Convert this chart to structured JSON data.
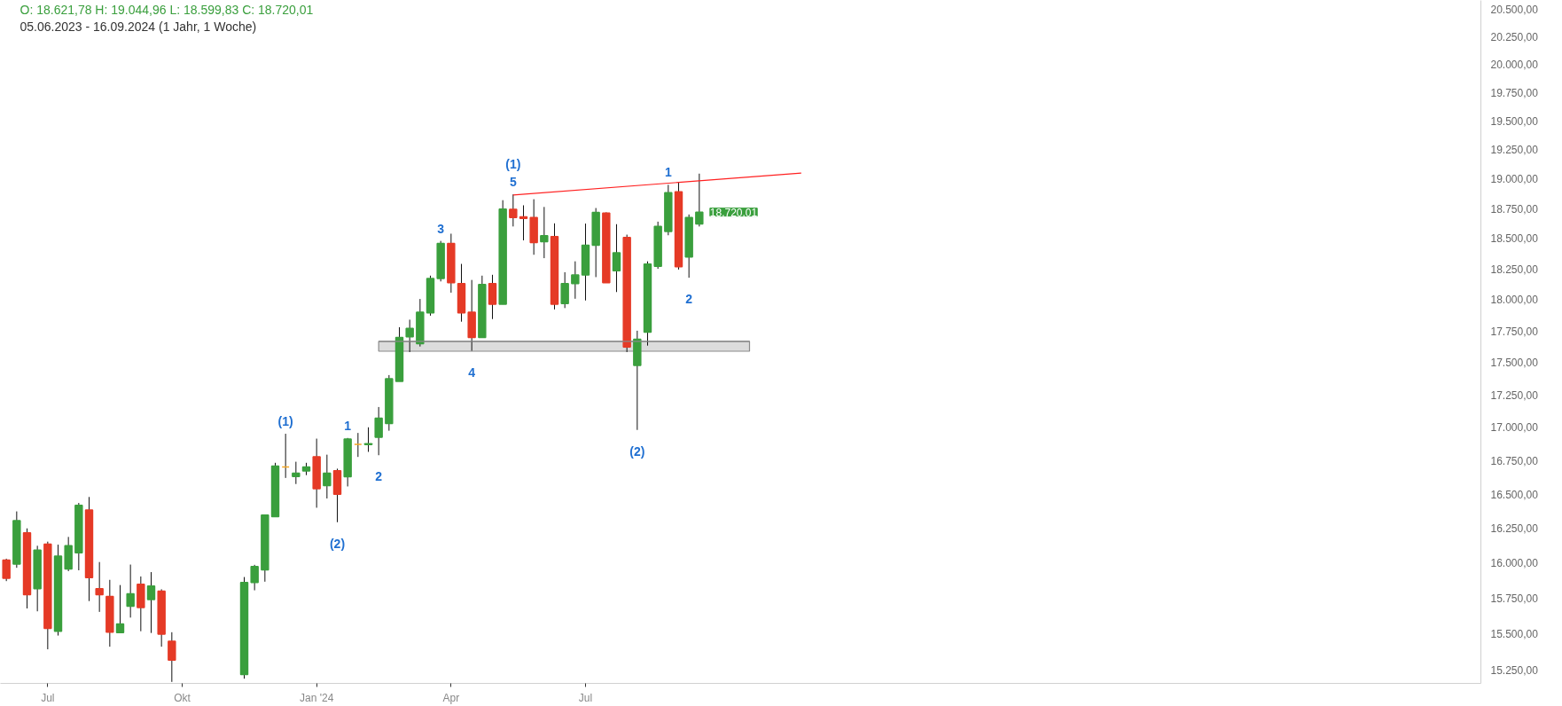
{
  "chart_data": {
    "type": "candlestick",
    "title": "O: 18.621,78  H: 19.044,96  L: 18.599,83  C: 18.720,01",
    "subtitle": "05.06.2023 - 16.09.2024  (1 Jahr, 1 Woche)",
    "x": [
      "2023-06-05",
      "2023-06-12",
      "2023-06-19",
      "2023-06-26",
      "2023-07-03",
      "2023-07-10",
      "2023-07-17",
      "2023-07-24",
      "2023-07-31",
      "2023-08-07",
      "2023-08-14",
      "2023-08-21",
      "2023-08-28",
      "2023-09-04",
      "2023-09-11",
      "2023-09-18",
      "2023-09-25",
      "2023-11-13",
      "2023-11-20",
      "2023-11-27",
      "2023-12-04",
      "2023-12-11",
      "2023-12-18",
      "2023-12-25",
      "2024-01-01",
      "2024-01-08",
      "2024-01-15",
      "2024-01-22",
      "2024-01-29",
      "2024-02-05",
      "2024-02-12",
      "2024-02-19",
      "2024-02-26",
      "2024-03-04",
      "2024-03-11",
      "2024-03-18",
      "2024-03-25",
      "2024-04-01",
      "2024-04-08",
      "2024-04-15",
      "2024-04-22",
      "2024-04-29",
      "2024-05-06",
      "2024-05-13",
      "2024-05-20",
      "2024-05-27",
      "2024-06-03",
      "2024-06-10",
      "2024-06-17",
      "2024-06-24",
      "2024-07-01",
      "2024-07-08",
      "2024-07-15",
      "2024-07-22",
      "2024-07-29",
      "2024-08-05",
      "2024-08-12",
      "2024-08-19",
      "2024-08-26",
      "2024-09-02",
      "2024-09-09",
      "2024-09-16"
    ],
    "ohlc": [
      [
        16020,
        16030,
        15870,
        15890
      ],
      [
        15992,
        16373,
        15965,
        16305
      ],
      [
        16216,
        16249,
        15677,
        15774
      ],
      [
        15817,
        16123,
        15657,
        16091
      ],
      [
        16135,
        16153,
        15393,
        15538
      ],
      [
        15518,
        16131,
        15488,
        16048
      ],
      [
        15956,
        16187,
        15941,
        16123
      ],
      [
        16073,
        16435,
        15947,
        16417
      ],
      [
        16384,
        16479,
        15729,
        15895
      ],
      [
        15817,
        16006,
        15653,
        15774
      ],
      [
        15762,
        15879,
        15411,
        15511
      ],
      [
        15508,
        15842,
        15508,
        15568
      ],
      [
        15693,
        15988,
        15613,
        15780
      ],
      [
        15848,
        15903,
        15518,
        15683
      ],
      [
        15739,
        15934,
        15506,
        15835
      ],
      [
        15799,
        15812,
        15411,
        15498
      ],
      [
        15449,
        15511,
        15170,
        15319
      ],
      [
        15221,
        15899,
        15192,
        15860
      ],
      [
        15860,
        15986,
        15805,
        15974
      ],
      [
        15950,
        16346,
        15866,
        16346
      ],
      [
        16334,
        16733,
        16334,
        16708
      ],
      [
        16702,
        16952,
        16620,
        16702
      ],
      [
        16631,
        16741,
        16575,
        16655
      ],
      [
        16672,
        16733,
        16641,
        16702
      ],
      [
        16779,
        16915,
        16400,
        16540
      ],
      [
        16564,
        16794,
        16468,
        16655
      ],
      [
        16674,
        16689,
        16294,
        16500
      ],
      [
        16629,
        16920,
        16557,
        16912
      ],
      [
        16871,
        16958,
        16777,
        16871
      ],
      [
        16870,
        17001,
        16815,
        16876
      ],
      [
        16925,
        17156,
        16790,
        17070
      ],
      [
        17030,
        17403,
        16975,
        17374
      ],
      [
        17354,
        17780,
        17354,
        17698
      ],
      [
        17704,
        17840,
        17583,
        17771
      ],
      [
        17649,
        18006,
        17627,
        17900
      ],
      [
        17895,
        18195,
        17872,
        18172
      ],
      [
        18172,
        18480,
        18148,
        18459
      ],
      [
        18459,
        18540,
        18057,
        18137
      ],
      [
        18130,
        18291,
        17824,
        17895
      ],
      [
        17900,
        18160,
        17593,
        17698
      ],
      [
        17698,
        18195,
        17698,
        18123
      ],
      [
        18130,
        18202,
        17845,
        17963
      ],
      [
        17963,
        18820,
        17963,
        18746
      ],
      [
        18743,
        18869,
        18600,
        18674
      ],
      [
        18681,
        18777,
        18485,
        18667
      ],
      [
        18674,
        18828,
        18366,
        18467
      ],
      [
        18473,
        18763,
        18338,
        18523
      ],
      [
        18516,
        18626,
        17922,
        17963
      ],
      [
        17970,
        18223,
        17933,
        18130
      ],
      [
        18130,
        18312,
        18008,
        18200
      ],
      [
        18200,
        18624,
        17994,
        18444
      ],
      [
        18444,
        18754,
        18183,
        18718
      ],
      [
        18711,
        18718,
        18137,
        18137
      ],
      [
        18235,
        18619,
        18062,
        18382
      ],
      [
        18508,
        18532,
        17583,
        17623
      ],
      [
        17478,
        17752,
        16981,
        17684
      ],
      [
        17741,
        18312,
        17634,
        18289
      ],
      [
        18272,
        18640,
        18251,
        18601
      ],
      [
        18559,
        18950,
        18527,
        18883
      ],
      [
        18890,
        18970,
        18245,
        18267
      ],
      [
        18348,
        18700,
        18178,
        18674
      ],
      [
        18621.78,
        19044.96,
        18599.83,
        18720.01
      ]
    ],
    "colors": [
      "#e53a26",
      "#3a9f3d",
      "#e53a26",
      "#3a9f3d",
      "#e53a26",
      "#3a9f3d",
      "#3a9f3d",
      "#3a9f3d",
      "#e53a26",
      "#e53a26",
      "#e53a26",
      "#3a9f3d",
      "#3a9f3d",
      "#e53a26",
      "#3a9f3d",
      "#e53a26",
      "#e53a26",
      "#3a9f3d",
      "#3a9f3d",
      "#3a9f3d",
      "#3a9f3d",
      "#f5a623",
      "#3a9f3d",
      "#3a9f3d",
      "#e53a26",
      "#3a9f3d",
      "#e53a26",
      "#3a9f3d",
      "#f5a623",
      "#3a9f3d",
      "#3a9f3d",
      "#3a9f3d",
      "#3a9f3d",
      "#3a9f3d",
      "#3a9f3d",
      "#3a9f3d",
      "#3a9f3d",
      "#e53a26",
      "#e53a26",
      "#e53a26",
      "#3a9f3d",
      "#e53a26",
      "#3a9f3d",
      "#e53a26",
      "#e53a26",
      "#e53a26",
      "#3a9f3d",
      "#e53a26",
      "#3a9f3d",
      "#3a9f3d",
      "#3a9f3d",
      "#3a9f3d",
      "#e53a26",
      "#3a9f3d",
      "#e53a26",
      "#3a9f3d",
      "#3a9f3d",
      "#3a9f3d",
      "#3a9f3d",
      "#e53a26",
      "#3a9f3d",
      "#3a9f3d"
    ],
    "series": [
      {
        "type": "line",
        "color": "#ff2020",
        "x": [
          "2024-05-13",
          "2024-11-24"
        ],
        "values": [
          18864,
          19050
        ]
      },
      {
        "type": "line",
        "color": "#8a8a8a",
        "x": [
          "2024-02-12",
          "2024-10-20"
        ],
        "values": [
          17667,
          17667
        ],
        "lower": [
          17590,
          17590
        ],
        "upper": [
          17667,
          17667
        ]
      }
    ],
    "annotations": [
      {
        "text": "(1)",
        "x": "2023-12-11",
        "y": 16952
      },
      {
        "text": "(2)",
        "x": "2024-01-15",
        "y": 16294
      },
      {
        "text": "1",
        "x": "2024-01-22",
        "y": 16920
      },
      {
        "text": "2",
        "x": "2024-02-12",
        "y": 16790
      },
      {
        "text": "3",
        "x": "2024-03-25",
        "y": 18480
      },
      {
        "text": "4",
        "x": "2024-04-15",
        "y": 17593
      },
      {
        "text": "5",
        "x": "2024-05-13",
        "y": 18869
      },
      {
        "text": "(1)",
        "x": "2024-05-13",
        "y": 18869
      },
      {
        "text": "(2)",
        "x": "2024-08-05",
        "y": 16981
      },
      {
        "text": "1",
        "x": "2024-08-26",
        "y": 18950
      },
      {
        "text": "2",
        "x": "2024-09-09",
        "y": 18178
      },
      {
        "text": "18.720,01",
        "x": "2024-09-16",
        "y": 18720.01
      }
    ],
    "log": true,
    "xlim": [
      "2023-06-01",
      "2026-02-27"
    ],
    "ylim": [
      15160,
      20580
    ],
    "xticks": [
      {
        "value": "2023-07-03",
        "label": "Jul"
      },
      {
        "value": "2023-10-02",
        "label": "Okt"
      },
      {
        "value": "2024-01-01",
        "label": "Jan '24"
      },
      {
        "value": "2024-04-01",
        "label": "Apr"
      },
      {
        "value": "2024-07-01",
        "label": "Jul"
      }
    ],
    "yticks": [
      {
        "value": 15250,
        "label": "15.250,00"
      },
      {
        "value": 15500,
        "label": "15.500,00"
      },
      {
        "value": 15750,
        "label": "15.750,00"
      },
      {
        "value": 16000,
        "label": "16.000,00"
      },
      {
        "value": 16250,
        "label": "16.250,00"
      },
      {
        "value": 16500,
        "label": "16.500,00"
      },
      {
        "value": 16750,
        "label": "16.750,00"
      },
      {
        "value": 17000,
        "label": "17.000,00"
      },
      {
        "value": 17250,
        "label": "17.250,00"
      },
      {
        "value": 17500,
        "label": "17.500,00"
      },
      {
        "value": 17750,
        "label": "17.750,00"
      },
      {
        "value": 18000,
        "label": "18.000,00"
      },
      {
        "value": 18250,
        "label": "18.250,00"
      },
      {
        "value": 18500,
        "label": "18.500,00"
      },
      {
        "value": 18750,
        "label": "18.750,00"
      },
      {
        "value": 19000,
        "label": "19.000,00"
      },
      {
        "value": 19250,
        "label": "19.250,00"
      },
      {
        "value": 19500,
        "label": "19.500,00"
      },
      {
        "value": 19750,
        "label": "19.750,00"
      },
      {
        "value": 20000,
        "label": "20.000,00"
      },
      {
        "value": 20250,
        "label": "20.250,00"
      },
      {
        "value": 20500,
        "label": "20.500,00"
      }
    ]
  }
}
